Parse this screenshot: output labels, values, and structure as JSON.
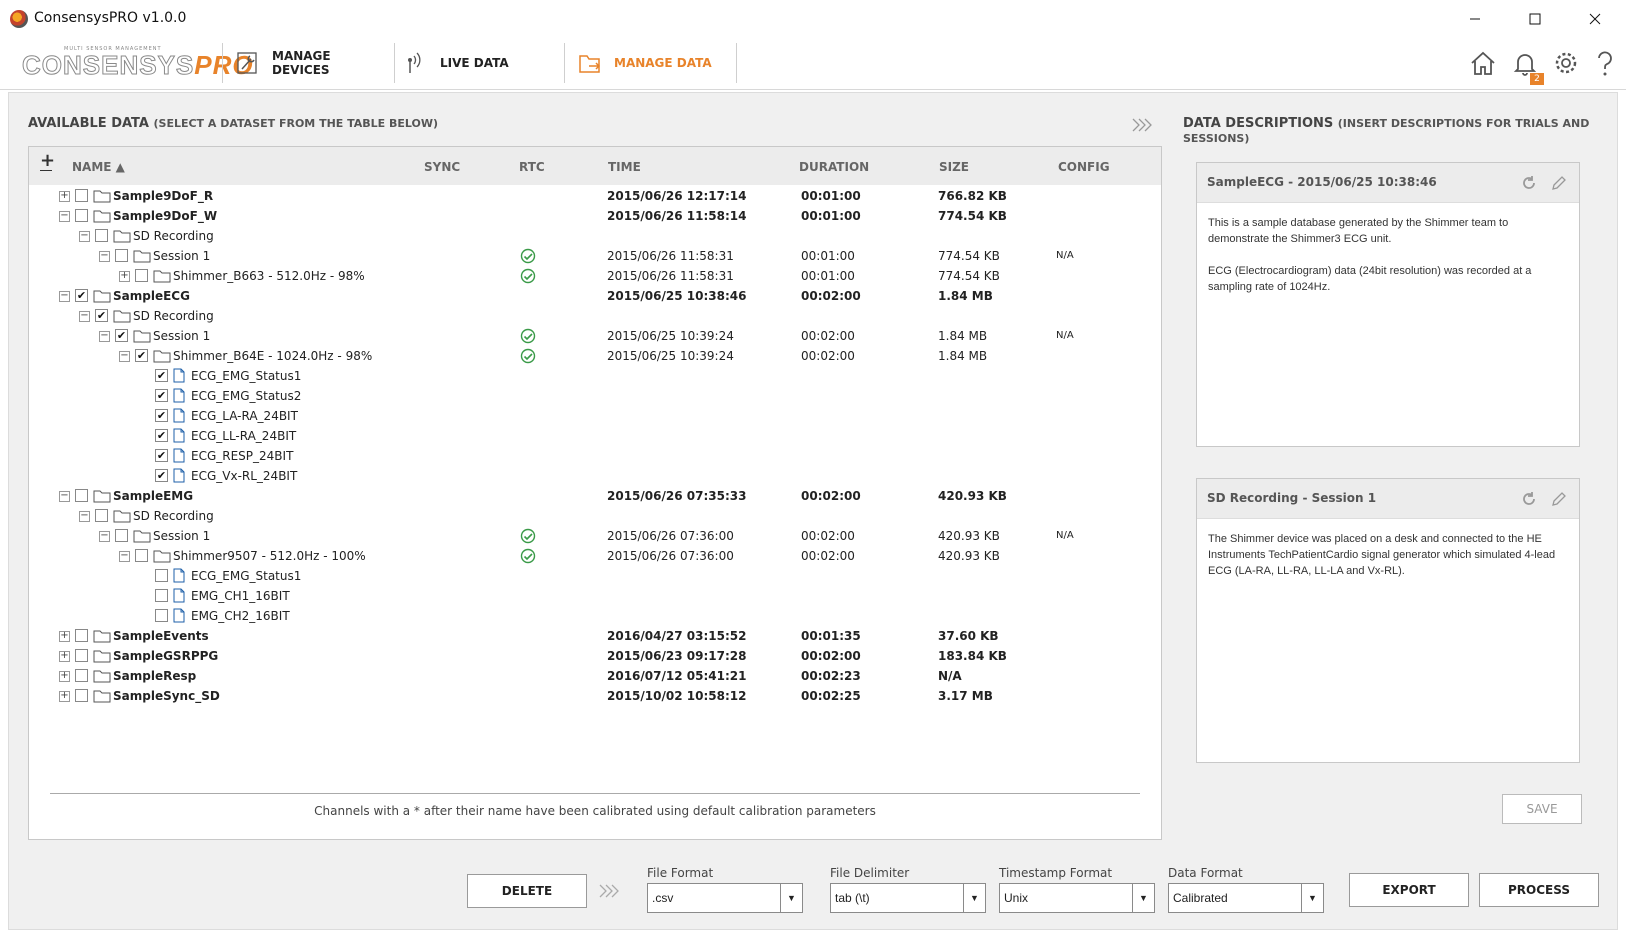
{
  "app": {
    "title": "ConsensysPRO v1.0.0"
  },
  "logo": {
    "tagline": "MULTI SENSOR MANAGEMENT",
    "text": "CONSENSYS",
    "pro": "PRO"
  },
  "nav": {
    "tabs": [
      {
        "label": "MANAGE DEVICES",
        "icon": "wrench-icon"
      },
      {
        "label": "LIVE DATA",
        "icon": "signal-icon"
      },
      {
        "label": "MANAGE DATA",
        "icon": "folder-export-icon",
        "active": true
      }
    ],
    "notification_count": "2"
  },
  "available": {
    "title": "AVAILABLE DATA",
    "subtitle": "(SELECT A DATASET FROM THE TABLE BELOW)",
    "columns": {
      "name": "NAME",
      "sync": "SYNC",
      "rtc": "RTC",
      "time": "TIME",
      "duration": "DURATION",
      "size": "SIZE",
      "config": "CONFIG"
    },
    "add_symbol": "+",
    "footer_note": "Channels with a * after their name have been calibrated using default calibration parameters"
  },
  "tree": [
    {
      "level": 0,
      "type": "folder",
      "exp": "+",
      "checked": false,
      "name": "Sample9DoF_R",
      "time": "2015/06/26 12:17:14",
      "duration": "00:01:00",
      "size": "766.82 KB",
      "bold": true
    },
    {
      "level": 0,
      "type": "folder",
      "exp": "-",
      "checked": false,
      "name": "Sample9DoF_W",
      "time": "2015/06/26 11:58:14",
      "duration": "00:01:00",
      "size": "774.54 KB",
      "bold": true
    },
    {
      "level": 1,
      "type": "folder",
      "exp": "-",
      "checked": false,
      "name": "SD Recording"
    },
    {
      "level": 2,
      "type": "folder",
      "exp": "-",
      "checked": false,
      "name": "Session 1",
      "rtc": true,
      "time": "2015/06/26 11:58:31",
      "duration": "00:01:00",
      "size": "774.54 KB",
      "config": "N/A"
    },
    {
      "level": 3,
      "type": "folder",
      "exp": "+",
      "checked": false,
      "name": "Shimmer_B663 - 512.0Hz - 98%",
      "rtc": true,
      "time": "2015/06/26 11:58:31",
      "duration": "00:01:00",
      "size": "774.54 KB"
    },
    {
      "level": 0,
      "type": "folder",
      "exp": "-",
      "checked": true,
      "name": "SampleECG",
      "time": "2015/06/25 10:38:46",
      "duration": "00:02:00",
      "size": "1.84 MB",
      "bold": true
    },
    {
      "level": 1,
      "type": "folder",
      "exp": "-",
      "checked": true,
      "name": "SD Recording"
    },
    {
      "level": 2,
      "type": "folder",
      "exp": "-",
      "checked": true,
      "name": "Session 1",
      "rtc": true,
      "time": "2015/06/25 10:39:24",
      "duration": "00:02:00",
      "size": "1.84 MB",
      "config": "N/A"
    },
    {
      "level": 3,
      "type": "folder",
      "exp": "-",
      "checked": true,
      "name": "Shimmer_B64E - 1024.0Hz - 98%",
      "rtc": true,
      "time": "2015/06/25 10:39:24",
      "duration": "00:02:00",
      "size": "1.84 MB"
    },
    {
      "level": 4,
      "type": "file",
      "checked": true,
      "name": "ECG_EMG_Status1"
    },
    {
      "level": 4,
      "type": "file",
      "checked": true,
      "name": "ECG_EMG_Status2"
    },
    {
      "level": 4,
      "type": "file",
      "checked": true,
      "name": "ECG_LA-RA_24BIT"
    },
    {
      "level": 4,
      "type": "file",
      "checked": true,
      "name": "ECG_LL-RA_24BIT"
    },
    {
      "level": 4,
      "type": "file",
      "checked": true,
      "name": "ECG_RESP_24BIT"
    },
    {
      "level": 4,
      "type": "file",
      "checked": true,
      "name": "ECG_Vx-RL_24BIT"
    },
    {
      "level": 0,
      "type": "folder",
      "exp": "-",
      "checked": false,
      "name": "SampleEMG",
      "time": "2015/06/26 07:35:33",
      "duration": "00:02:00",
      "size": "420.93 KB",
      "bold": true
    },
    {
      "level": 1,
      "type": "folder",
      "exp": "-",
      "checked": false,
      "name": "SD Recording"
    },
    {
      "level": 2,
      "type": "folder",
      "exp": "-",
      "checked": false,
      "name": "Session 1",
      "rtc": true,
      "time": "2015/06/26 07:36:00",
      "duration": "00:02:00",
      "size": "420.93 KB",
      "config": "N/A"
    },
    {
      "level": 3,
      "type": "folder",
      "exp": "-",
      "checked": false,
      "name": "Shimmer9507 - 512.0Hz - 100%",
      "rtc": true,
      "time": "2015/06/26 07:36:00",
      "duration": "00:02:00",
      "size": "420.93 KB"
    },
    {
      "level": 4,
      "type": "file",
      "checked": false,
      "name": "ECG_EMG_Status1"
    },
    {
      "level": 4,
      "type": "file",
      "checked": false,
      "name": "EMG_CH1_16BIT"
    },
    {
      "level": 4,
      "type": "file",
      "checked": false,
      "name": "EMG_CH2_16BIT"
    },
    {
      "level": 0,
      "type": "folder",
      "exp": "+",
      "checked": false,
      "name": "SampleEvents",
      "time": "2016/04/27 03:15:52",
      "duration": "00:01:35",
      "size": "37.60 KB",
      "bold": true
    },
    {
      "level": 0,
      "type": "folder",
      "exp": "+",
      "checked": false,
      "name": "SampleGSRPPG",
      "time": "2015/06/23 09:17:28",
      "duration": "00:02:00",
      "size": "183.84 KB",
      "bold": true
    },
    {
      "level": 0,
      "type": "folder",
      "exp": "+",
      "checked": false,
      "name": "SampleResp",
      "time": "2016/07/12 05:41:21",
      "duration": "00:02:23",
      "size": "N/A",
      "bold": true
    },
    {
      "level": 0,
      "type": "folder",
      "exp": "+",
      "checked": false,
      "name": "SampleSync_SD",
      "time": "2015/10/02 10:58:12",
      "duration": "00:02:25",
      "size": "3.17 MB",
      "bold": true
    }
  ],
  "descriptions": {
    "title": "DATA DESCRIPTIONS",
    "subtitle": "(INSERT DESCRIPTIONS FOR TRIALS AND SESSIONS)",
    "cards": [
      {
        "title": "SampleECG - 2015/06/25 10:38:46",
        "body": "This is a sample database generated by the Shimmer team to demonstrate the Shimmer3 ECG unit.\n\nECG (Electrocardiogram) data (24bit resolution) was recorded at a sampling rate of 1024Hz."
      },
      {
        "title": "SD Recording - Session 1",
        "body": "The Shimmer device was placed on a desk and connected to the HE Instruments TechPatientCardio signal generator which simulated 4-lead ECG (LA-RA, LL-RA, LL-LA and Vx-RL)."
      }
    ],
    "save_label": "SAVE"
  },
  "bottom": {
    "delete_label": "DELETE",
    "file_format": {
      "label": "File Format",
      "value": ".csv"
    },
    "file_delimiter": {
      "label": "File Delimiter",
      "value": "tab (\\t)"
    },
    "timestamp_format": {
      "label": "Timestamp Format",
      "value": "Unix"
    },
    "data_format": {
      "label": "Data Format",
      "value": "Calibrated"
    },
    "export_label": "EXPORT",
    "process_label": "PROCESS"
  }
}
